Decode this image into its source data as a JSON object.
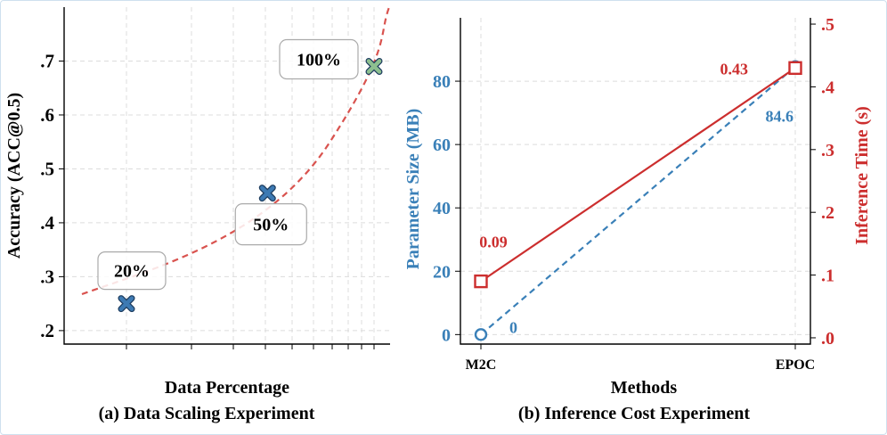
{
  "chart_data": [
    {
      "type": "scatter",
      "caption": "(a) Data Scaling Experiment",
      "xlabel": "Data Percentage",
      "ylabel": "Accuracy (ACC@0.5)",
      "ylim": [
        0.175,
        0.8
      ],
      "yticks": [
        0.2,
        0.3,
        0.4,
        0.5,
        0.6,
        0.7
      ],
      "ytick_labels": [
        ".2",
        ".3",
        ".4",
        ".5",
        ".6",
        ".7"
      ],
      "points": [
        {
          "x": 20,
          "y": 0.25,
          "label": "20%",
          "color": "#3d7ab3"
        },
        {
          "x": 50,
          "y": 0.455,
          "label": "50%",
          "color": "#3d7ab3"
        },
        {
          "x": 100,
          "y": 0.69,
          "label": "100%",
          "color": "#8dbf8f"
        }
      ],
      "trend": {
        "style": "dashed",
        "color": "#d9534f",
        "fit": "exponential"
      }
    },
    {
      "type": "line",
      "caption": "(b) Inference Cost Experiment",
      "xlabel": "Methods",
      "categories": [
        "M2C",
        "EPOC"
      ],
      "y_left": {
        "label": "Parameter Size (MB)",
        "color": "#3a80b8",
        "ylim": [
          -3,
          100
        ],
        "ticks": [
          0,
          20,
          40,
          60,
          80
        ],
        "tick_labels": [
          "0",
          "20",
          "40",
          "60",
          "80"
        ]
      },
      "y_right": {
        "label": "Inference Time (s)",
        "color": "#cc2e2e",
        "ylim": [
          -0.01,
          0.51
        ],
        "ticks": [
          0.0,
          0.1,
          0.2,
          0.3,
          0.4,
          0.5
        ],
        "tick_labels": [
          ".0",
          ".1",
          ".2",
          ".3",
          ".4",
          ".5"
        ]
      },
      "series": [
        {
          "name": "Parameter Size (MB)",
          "axis": "left",
          "style": "dashed",
          "marker": "circle",
          "color": "#3a80b8",
          "values": [
            0,
            84.6
          ],
          "labels": [
            "0",
            "84.6"
          ]
        },
        {
          "name": "Inference Time (s)",
          "axis": "right",
          "style": "solid",
          "marker": "square",
          "color": "#cc2e2e",
          "values": [
            0.09,
            0.43
          ],
          "labels": [
            "0.09",
            "0.43"
          ]
        }
      ]
    }
  ]
}
